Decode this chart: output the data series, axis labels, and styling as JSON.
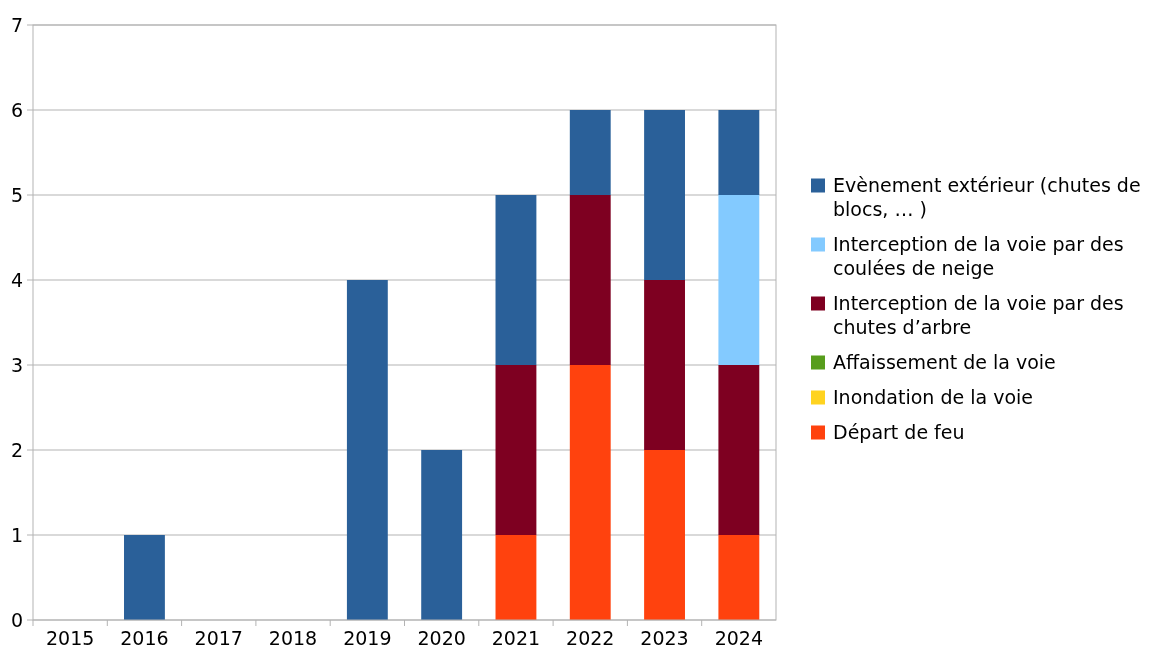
{
  "chart_data": {
    "type": "bar",
    "stacked": true,
    "categories": [
      "2015",
      "2016",
      "2017",
      "2018",
      "2019",
      "2020",
      "2021",
      "2022",
      "2023",
      "2024"
    ],
    "series": [
      {
        "name": "Départ de feu",
        "color": "#ff420e",
        "values": [
          0,
          0,
          0,
          0,
          0,
          0,
          1,
          3,
          2,
          1
        ]
      },
      {
        "name": "Inondation de la voie",
        "color": "#ffd320",
        "values": [
          0,
          0,
          0,
          0,
          0,
          0,
          0,
          0,
          0,
          0
        ]
      },
      {
        "name": "Affaissement de la voie",
        "color": "#579d1c",
        "values": [
          0,
          0,
          0,
          0,
          0,
          0,
          0,
          0,
          0,
          0
        ]
      },
      {
        "name": "Interception de la voie par des chutes d’arbre",
        "color": "#7e0021",
        "values": [
          0,
          0,
          0,
          0,
          0,
          0,
          2,
          2,
          2,
          2
        ]
      },
      {
        "name": "Interception de la voie par des coulées de neige",
        "color": "#83caff",
        "values": [
          0,
          0,
          0,
          0,
          0,
          0,
          0,
          0,
          0,
          2
        ]
      },
      {
        "name": "Evènement extérieur (chutes de blocs, … )",
        "color": "#2a6099",
        "values": [
          0,
          1,
          0,
          0,
          4,
          2,
          2,
          1,
          2,
          1
        ]
      }
    ],
    "ylim": [
      0,
      7
    ],
    "yticks": [
      0,
      1,
      2,
      3,
      4,
      5,
      6,
      7
    ],
    "grid": "y",
    "legend": "right"
  }
}
